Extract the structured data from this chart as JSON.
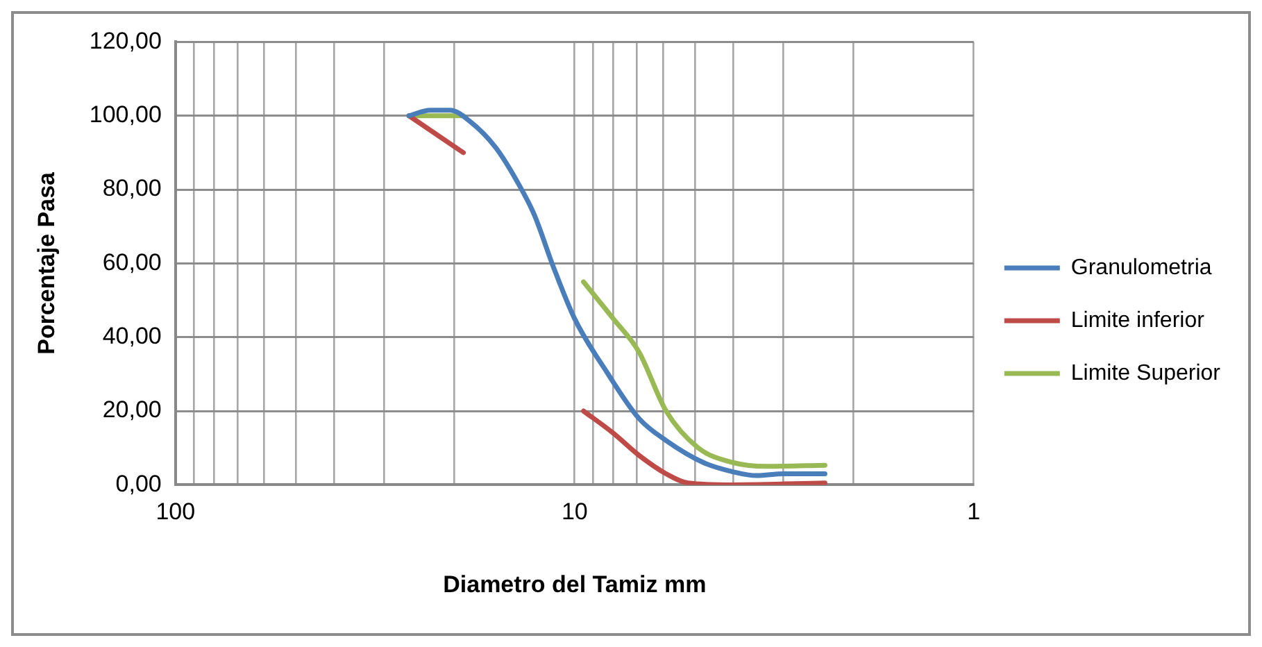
{
  "chart_data": {
    "type": "line",
    "xlabel": "Diametro del Tamiz mm",
    "ylabel": "Porcentaje Pasa",
    "log": "x",
    "xlim": [
      100,
      1
    ],
    "xticks": [
      100,
      {
        "value": 90,
        "label": null
      },
      {
        "value": 80,
        "label": null
      },
      {
        "value": 70,
        "label": null
      },
      {
        "value": 60,
        "label": null
      },
      {
        "value": 50,
        "label": null
      },
      {
        "value": 40,
        "label": null
      },
      {
        "value": 30,
        "label": null
      },
      {
        "value": 20,
        "label": null
      },
      10,
      {
        "value": 9,
        "label": null
      },
      {
        "value": 8,
        "label": null
      },
      {
        "value": 7,
        "label": null
      },
      {
        "value": 6,
        "label": null
      },
      {
        "value": 5,
        "label": null
      },
      {
        "value": 4,
        "label": null
      },
      {
        "value": 3,
        "label": null
      },
      {
        "value": 2,
        "label": null
      },
      1
    ],
    "ylim": [
      0,
      120
    ],
    "yticks": [
      {
        "value": 0,
        "label": "0,00"
      },
      {
        "value": 20,
        "label": "20,00"
      },
      {
        "value": 40,
        "label": "40,00"
      },
      {
        "value": 60,
        "label": "60,00"
      },
      {
        "value": 80,
        "label": "80,00"
      },
      {
        "value": 100,
        "label": "100,00"
      },
      {
        "value": 120,
        "label": "120,00"
      }
    ],
    "grid": true,
    "legend": "right",
    "marker": "none",
    "line_style": "solid",
    "series": [
      {
        "name": "Granulometria",
        "color": "#4a7ebb",
        "x": [
          26,
          23,
          20.5,
          18.3,
          15.8,
          13.9,
          12.6,
          11.3,
          10,
          8.3,
          6.9,
          5.9,
          4.75,
          4,
          3.5,
          3,
          2.36
        ],
        "values": [
          100,
          101.5,
          101.5,
          98.5,
          91.5,
          82,
          73,
          59,
          45,
          30.5,
          18,
          12,
          6,
          3.5,
          2.5,
          3,
          3
        ]
      },
      {
        "name": "Limite inferior",
        "color": "#be4b48",
        "x": [
          26,
          19,
          null,
          9.5,
          8,
          6.9,
          5.9,
          5.2,
          4,
          2.36
        ],
        "values": [
          100,
          90,
          null,
          20,
          14,
          8,
          3,
          0.5,
          0,
          0.5
        ]
      },
      {
        "name": "Limite Superior",
        "color": "#98b954",
        "x": [
          26,
          19,
          null,
          9.5,
          8,
          6.9,
          5.9,
          4.9,
          4,
          3.3,
          2.36
        ],
        "values": [
          100,
          100,
          null,
          55,
          45,
          36,
          20,
          10,
          6,
          5,
          5.3
        ]
      }
    ]
  }
}
